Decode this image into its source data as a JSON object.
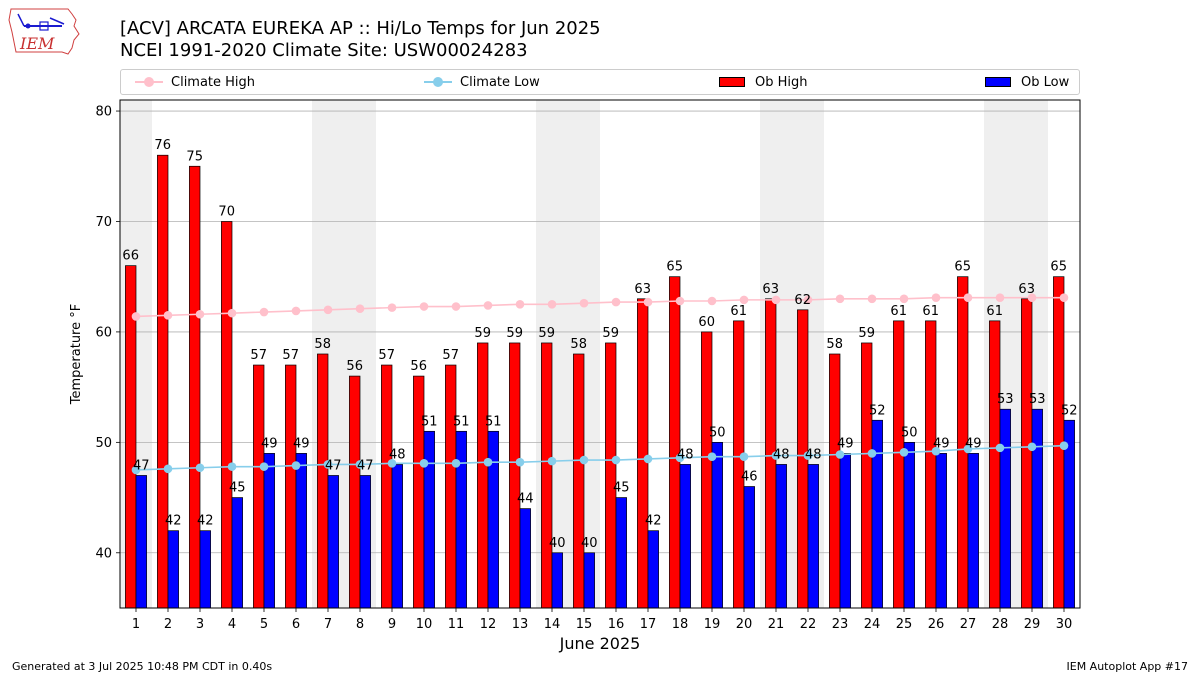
{
  "header": {
    "title_line1": "[ACV] ARCATA EUREKA AP :: Hi/Lo Temps for Jun 2025",
    "title_line2": "NCEI 1991-2020 Climate Site: USW00024283"
  },
  "logo": {
    "text": "IEM",
    "icon": "iowa-state-outline-logo"
  },
  "legend": {
    "climate_high": "Climate High",
    "climate_low": "Climate Low",
    "ob_high": "Ob High",
    "ob_low": "Ob Low"
  },
  "footer": {
    "left": "Generated at 3 Jul 2025 10:48 PM CDT in 0.40s",
    "right": "IEM Autoplot App #17"
  },
  "colors": {
    "ob_high": "#ff0000",
    "ob_low": "#0000ff",
    "climate_high": "#ffc0cb",
    "climate_low": "#87ceeb",
    "weekend_shade": "#efefef"
  },
  "chart_data": {
    "type": "bar",
    "xlabel": "June 2025",
    "ylabel": "Temperature °F",
    "ylim": [
      35,
      81
    ],
    "yticks": [
      40,
      50,
      60,
      70,
      80
    ],
    "grid": "horizontal",
    "legend_placement": "top",
    "x": [
      1,
      2,
      3,
      4,
      5,
      6,
      7,
      8,
      9,
      10,
      11,
      12,
      13,
      14,
      15,
      16,
      17,
      18,
      19,
      20,
      21,
      22,
      23,
      24,
      25,
      26,
      27,
      28,
      29,
      30
    ],
    "shaded_days": [
      1,
      7,
      8,
      14,
      15,
      21,
      22,
      28,
      29
    ],
    "series": [
      {
        "name": "Ob High",
        "type": "bar",
        "values": [
          66,
          76,
          75,
          70,
          57,
          57,
          58,
          56,
          57,
          56,
          57,
          59,
          59,
          59,
          58,
          59,
          63,
          65,
          60,
          61,
          63,
          62,
          58,
          59,
          61,
          61,
          65,
          61,
          63,
          65
        ]
      },
      {
        "name": "Ob Low",
        "type": "bar",
        "values": [
          47,
          42,
          42,
          45,
          49,
          49,
          47,
          47,
          48,
          51,
          51,
          51,
          44,
          40,
          40,
          45,
          42,
          48,
          50,
          46,
          48,
          48,
          49,
          52,
          50,
          49,
          49,
          53,
          53,
          52
        ]
      },
      {
        "name": "Climate High",
        "type": "line",
        "values": [
          61.4,
          61.5,
          61.6,
          61.7,
          61.8,
          61.9,
          62.0,
          62.1,
          62.2,
          62.3,
          62.3,
          62.4,
          62.5,
          62.5,
          62.6,
          62.7,
          62.7,
          62.8,
          62.8,
          62.9,
          62.9,
          62.9,
          63.0,
          63.0,
          63.0,
          63.1,
          63.1,
          63.1,
          63.1,
          63.1
        ]
      },
      {
        "name": "Climate Low",
        "type": "line",
        "values": [
          47.5,
          47.6,
          47.7,
          47.8,
          47.8,
          47.9,
          48.0,
          48.0,
          48.1,
          48.1,
          48.1,
          48.2,
          48.2,
          48.3,
          48.4,
          48.4,
          48.5,
          48.6,
          48.7,
          48.7,
          48.8,
          48.8,
          48.9,
          49.0,
          49.1,
          49.2,
          49.4,
          49.5,
          49.6,
          49.7
        ]
      }
    ]
  }
}
